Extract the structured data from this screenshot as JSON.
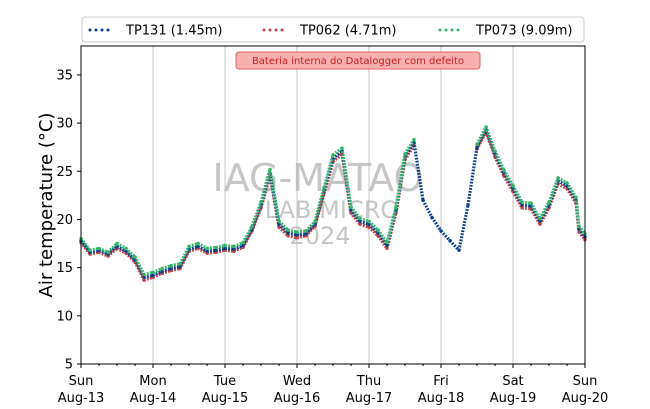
{
  "chart_data": {
    "type": "scatter",
    "ylabel": "Air temperature (°C)",
    "ylim": [
      5,
      38
    ],
    "yticks": [
      5,
      10,
      15,
      20,
      25,
      30,
      35
    ],
    "xlim": [
      "2024-08-13 00:00",
      "2024-08-20 00:00"
    ],
    "xticks": [
      {
        "day": "Sun",
        "date": "Aug-13"
      },
      {
        "day": "Mon",
        "date": "Aug-14"
      },
      {
        "day": "Tue",
        "date": "Aug-15"
      },
      {
        "day": "Wed",
        "date": "Aug-16"
      },
      {
        "day": "Thu",
        "date": "Aug-17"
      },
      {
        "day": "Fri",
        "date": "Aug-18"
      },
      {
        "day": "Sat",
        "date": "Aug-19"
      },
      {
        "day": "Sun",
        "date": "Aug-20"
      }
    ],
    "grid": "vertical",
    "legend_placement": "top",
    "series": [
      {
        "name": "TP131 (1.45m)",
        "color": "#0d3f8a",
        "points": [
          [
            "2024-08-13 00:00",
            17.8
          ],
          [
            "2024-08-13 03:00",
            16.6
          ],
          [
            "2024-08-13 06:00",
            16.8
          ],
          [
            "2024-08-13 09:00",
            16.4
          ],
          [
            "2024-08-13 12:00",
            17.2
          ],
          [
            "2024-08-13 15:00",
            16.7
          ],
          [
            "2024-08-13 18:00",
            15.8
          ],
          [
            "2024-08-13 21:00",
            14.0
          ],
          [
            "2024-08-14 00:00",
            14.2
          ],
          [
            "2024-08-14 03:00",
            14.6
          ],
          [
            "2024-08-14 06:00",
            14.9
          ],
          [
            "2024-08-14 09:00",
            15.1
          ],
          [
            "2024-08-14 12:00",
            16.9
          ],
          [
            "2024-08-14 15:00",
            17.2
          ],
          [
            "2024-08-14 18:00",
            16.7
          ],
          [
            "2024-08-14 21:00",
            16.8
          ],
          [
            "2024-08-15 00:00",
            17.0
          ],
          [
            "2024-08-15 03:00",
            16.9
          ],
          [
            "2024-08-15 06:00",
            17.3
          ],
          [
            "2024-08-15 09:00",
            19.0
          ],
          [
            "2024-08-15 12:00",
            21.5
          ],
          [
            "2024-08-15 15:00",
            24.8
          ],
          [
            "2024-08-15 18:00",
            19.5
          ],
          [
            "2024-08-15 21:00",
            18.6
          ],
          [
            "2024-08-16 00:00",
            18.4
          ],
          [
            "2024-08-16 03:00",
            18.5
          ],
          [
            "2024-08-16 06:00",
            19.5
          ],
          [
            "2024-08-16 09:00",
            23.0
          ],
          [
            "2024-08-16 12:00",
            26.3
          ],
          [
            "2024-08-16 15:00",
            27.1
          ],
          [
            "2024-08-16 18:00",
            21.0
          ],
          [
            "2024-08-16 21:00",
            19.8
          ],
          [
            "2024-08-17 00:00",
            19.5
          ],
          [
            "2024-08-17 03:00",
            18.6
          ],
          [
            "2024-08-17 06:00",
            17.3
          ],
          [
            "2024-08-17 09:00",
            21.0
          ],
          [
            "2024-08-17 12:00",
            26.5
          ],
          [
            "2024-08-17 15:00",
            28.0
          ],
          [
            "2024-08-17 18:00",
            22.0
          ],
          [
            "2024-08-17 21:00",
            20.2
          ],
          [
            "2024-08-18 00:00",
            18.8
          ],
          [
            "2024-08-18 03:00",
            17.8
          ],
          [
            "2024-08-18 06:00",
            16.8
          ],
          [
            "2024-08-18 09:00",
            21.5
          ],
          [
            "2024-08-18 12:00",
            27.5
          ],
          [
            "2024-08-18 15:00",
            29.3
          ],
          [
            "2024-08-18 18:00",
            26.8
          ],
          [
            "2024-08-18 21:00",
            24.8
          ],
          [
            "2024-08-19 00:00",
            23.2
          ],
          [
            "2024-08-19 03:00",
            21.5
          ],
          [
            "2024-08-19 06:00",
            21.4
          ],
          [
            "2024-08-19 09:00",
            19.8
          ],
          [
            "2024-08-19 12:00",
            21.5
          ],
          [
            "2024-08-19 15:00",
            24.0
          ],
          [
            "2024-08-19 18:00",
            23.5
          ],
          [
            "2024-08-19 21:00",
            22.0
          ],
          [
            "2024-08-19 22:00",
            19.0
          ],
          [
            "2024-08-20 00:00",
            18.2
          ]
        ]
      },
      {
        "name": "TP062 (4.71m)",
        "color": "#c8434a",
        "points": [
          [
            "2024-08-13 00:00",
            17.6
          ],
          [
            "2024-08-13 03:00",
            16.4
          ],
          [
            "2024-08-13 06:00",
            16.6
          ],
          [
            "2024-08-13 09:00",
            16.2
          ],
          [
            "2024-08-13 12:00",
            17.0
          ],
          [
            "2024-08-13 15:00",
            16.5
          ],
          [
            "2024-08-13 18:00",
            15.6
          ],
          [
            "2024-08-13 21:00",
            13.7
          ],
          [
            "2024-08-14 00:00",
            14.0
          ],
          [
            "2024-08-14 03:00",
            14.4
          ],
          [
            "2024-08-14 06:00",
            14.7
          ],
          [
            "2024-08-14 09:00",
            14.9
          ],
          [
            "2024-08-14 12:00",
            16.7
          ],
          [
            "2024-08-14 15:00",
            17.0
          ],
          [
            "2024-08-14 18:00",
            16.5
          ],
          [
            "2024-08-14 21:00",
            16.6
          ],
          [
            "2024-08-15 00:00",
            16.8
          ],
          [
            "2024-08-15 03:00",
            16.7
          ],
          [
            "2024-08-15 06:00",
            17.1
          ],
          [
            "2024-08-15 09:00",
            18.8
          ],
          [
            "2024-08-15 12:00",
            21.2
          ],
          [
            "2024-08-15 15:00",
            24.5
          ],
          [
            "2024-08-15 18:00",
            19.2
          ],
          [
            "2024-08-15 21:00",
            18.3
          ],
          [
            "2024-08-16 00:00",
            18.1
          ],
          [
            "2024-08-16 03:00",
            18.3
          ],
          [
            "2024-08-16 06:00",
            19.3
          ],
          [
            "2024-08-16 09:00",
            22.7
          ],
          [
            "2024-08-16 12:00",
            26.0
          ],
          [
            "2024-08-16 15:00",
            26.8
          ],
          [
            "2024-08-16 18:00",
            20.7
          ],
          [
            "2024-08-16 21:00",
            19.5
          ],
          [
            "2024-08-17 00:00",
            19.2
          ],
          [
            "2024-08-17 03:00",
            18.3
          ],
          [
            "2024-08-17 06:00",
            17.0
          ],
          [
            "2024-08-17 09:00",
            20.7
          ],
          [
            "2024-08-17 12:00",
            26.2
          ],
          [
            "2024-08-17 15:00",
            27.7
          ],
          [
            "2024-08-18 12:00",
            27.3
          ],
          [
            "2024-08-18 15:00",
            29.1
          ],
          [
            "2024-08-18 18:00",
            26.5
          ],
          [
            "2024-08-18 21:00",
            24.5
          ],
          [
            "2024-08-19 00:00",
            22.9
          ],
          [
            "2024-08-19 03:00",
            21.2
          ],
          [
            "2024-08-19 06:00",
            21.1
          ],
          [
            "2024-08-19 09:00",
            19.5
          ],
          [
            "2024-08-19 12:00",
            21.2
          ],
          [
            "2024-08-19 15:00",
            23.7
          ],
          [
            "2024-08-19 18:00",
            23.2
          ],
          [
            "2024-08-19 21:00",
            21.7
          ],
          [
            "2024-08-19 22:00",
            18.7
          ],
          [
            "2024-08-20 00:00",
            17.9
          ]
        ]
      },
      {
        "name": "TP073 (9.09m)",
        "color": "#33b86a",
        "points": [
          [
            "2024-08-13 00:00",
            18.0
          ],
          [
            "2024-08-13 03:00",
            16.8
          ],
          [
            "2024-08-13 06:00",
            17.0
          ],
          [
            "2024-08-13 09:00",
            16.6
          ],
          [
            "2024-08-13 12:00",
            17.5
          ],
          [
            "2024-08-13 15:00",
            17.0
          ],
          [
            "2024-08-13 18:00",
            16.1
          ],
          [
            "2024-08-13 21:00",
            14.3
          ],
          [
            "2024-08-14 00:00",
            14.5
          ],
          [
            "2024-08-14 03:00",
            14.9
          ],
          [
            "2024-08-14 06:00",
            15.2
          ],
          [
            "2024-08-14 09:00",
            15.4
          ],
          [
            "2024-08-14 12:00",
            17.2
          ],
          [
            "2024-08-14 15:00",
            17.5
          ],
          [
            "2024-08-14 18:00",
            17.0
          ],
          [
            "2024-08-14 21:00",
            17.1
          ],
          [
            "2024-08-15 00:00",
            17.3
          ],
          [
            "2024-08-15 03:00",
            17.2
          ],
          [
            "2024-08-15 06:00",
            17.6
          ],
          [
            "2024-08-15 09:00",
            19.3
          ],
          [
            "2024-08-15 12:00",
            21.8
          ],
          [
            "2024-08-15 15:00",
            25.2
          ],
          [
            "2024-08-15 18:00",
            19.8
          ],
          [
            "2024-08-15 21:00",
            18.9
          ],
          [
            "2024-08-16 00:00",
            18.7
          ],
          [
            "2024-08-16 03:00",
            18.8
          ],
          [
            "2024-08-16 06:00",
            19.8
          ],
          [
            "2024-08-16 09:00",
            23.3
          ],
          [
            "2024-08-16 12:00",
            26.7
          ],
          [
            "2024-08-16 15:00",
            27.4
          ],
          [
            "2024-08-16 18:00",
            21.3
          ],
          [
            "2024-08-16 21:00",
            20.1
          ],
          [
            "2024-08-17 00:00",
            19.8
          ],
          [
            "2024-08-17 03:00",
            18.9
          ],
          [
            "2024-08-17 06:00",
            17.6
          ],
          [
            "2024-08-17 09:00",
            21.3
          ],
          [
            "2024-08-17 12:00",
            26.8
          ],
          [
            "2024-08-17 15:00",
            28.3
          ],
          [
            "2024-08-18 12:00",
            27.8
          ],
          [
            "2024-08-18 15:00",
            29.6
          ],
          [
            "2024-08-18 18:00",
            27.1
          ],
          [
            "2024-08-18 21:00",
            25.1
          ],
          [
            "2024-08-19 00:00",
            23.5
          ],
          [
            "2024-08-19 03:00",
            21.8
          ],
          [
            "2024-08-19 06:00",
            21.7
          ],
          [
            "2024-08-19 09:00",
            20.1
          ],
          [
            "2024-08-19 12:00",
            21.8
          ],
          [
            "2024-08-19 15:00",
            24.3
          ],
          [
            "2024-08-19 18:00",
            23.8
          ],
          [
            "2024-08-19 21:00",
            22.3
          ],
          [
            "2024-08-19 22:00",
            19.3
          ],
          [
            "2024-08-20 00:00",
            18.5
          ]
        ]
      }
    ],
    "annotation": {
      "text": "Bateria interna do Datalogger com defeito",
      "background": "#f6b0b0",
      "border": "#e06060",
      "text_color": "#cc1f1f"
    },
    "watermark": {
      "line1": "IAG-MATAO",
      "line2": "LAB MICRO",
      "line3": "2024"
    }
  }
}
